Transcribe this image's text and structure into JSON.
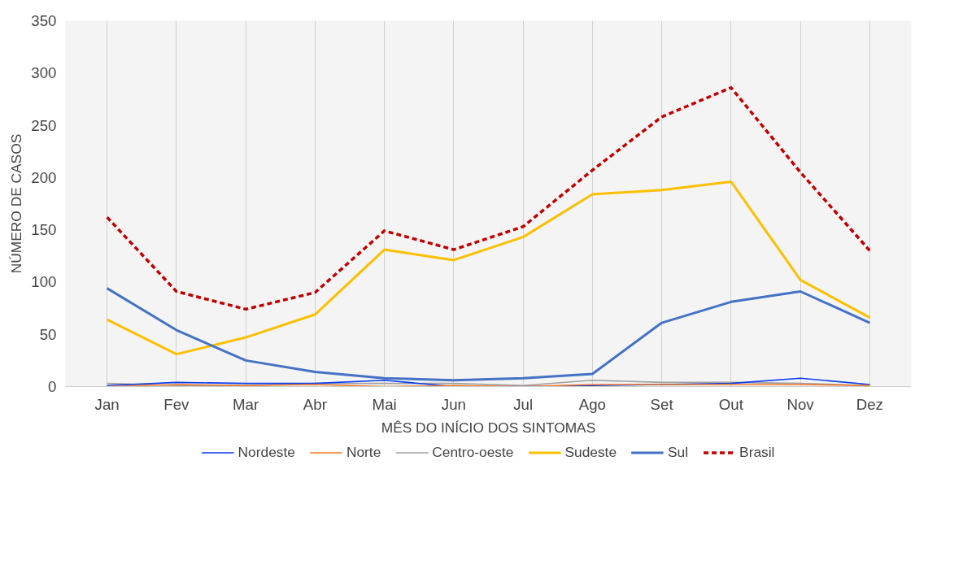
{
  "chart_data": {
    "type": "line",
    "xlabel": "MÊS DO INÍCIO DOS SINTOMAS",
    "ylabel": "NÚMERO DE CASOS",
    "categories": [
      "Jan",
      "Fev",
      "Mar",
      "Abr",
      "Mai",
      "Jun",
      "Jul",
      "Ago",
      "Set",
      "Out",
      "Nov",
      "Dez"
    ],
    "series": [
      {
        "name": "Nordeste",
        "color": "#0a3cf0",
        "values": [
          1,
          4,
          3,
          3,
          6,
          0,
          0,
          1,
          2,
          3,
          8,
          2
        ]
      },
      {
        "name": "Norte",
        "color": "#f07c2a",
        "values": [
          0,
          2,
          1,
          2,
          0,
          1,
          0,
          2,
          2,
          2,
          2,
          1
        ]
      },
      {
        "name": "Centro-oeste",
        "color": "#a0a0a0",
        "values": [
          3,
          1,
          1,
          3,
          3,
          3,
          1,
          6,
          4,
          4,
          3,
          1
        ]
      },
      {
        "name": "Sudeste",
        "color": "#fcc000",
        "values": [
          64,
          31,
          47,
          69,
          131,
          121,
          143,
          184,
          188,
          196,
          102,
          66
        ]
      },
      {
        "name": "Sul",
        "color": "#4472c4",
        "values": [
          94,
          54,
          25,
          14,
          8,
          6,
          8,
          12,
          61,
          81,
          91,
          61
        ]
      },
      {
        "name": "Brasil",
        "color": "#c00000",
        "line_style": "dashed",
        "values": [
          162,
          91,
          74,
          90,
          149,
          131,
          153,
          207,
          258,
          286,
          205,
          130
        ]
      }
    ],
    "ylim": [
      0,
      350
    ],
    "yticks": [
      0,
      50,
      100,
      150,
      200,
      250,
      300,
      350
    ],
    "grid": "x",
    "legend": "bottom",
    "line_style": "solid",
    "marker": "none"
  }
}
